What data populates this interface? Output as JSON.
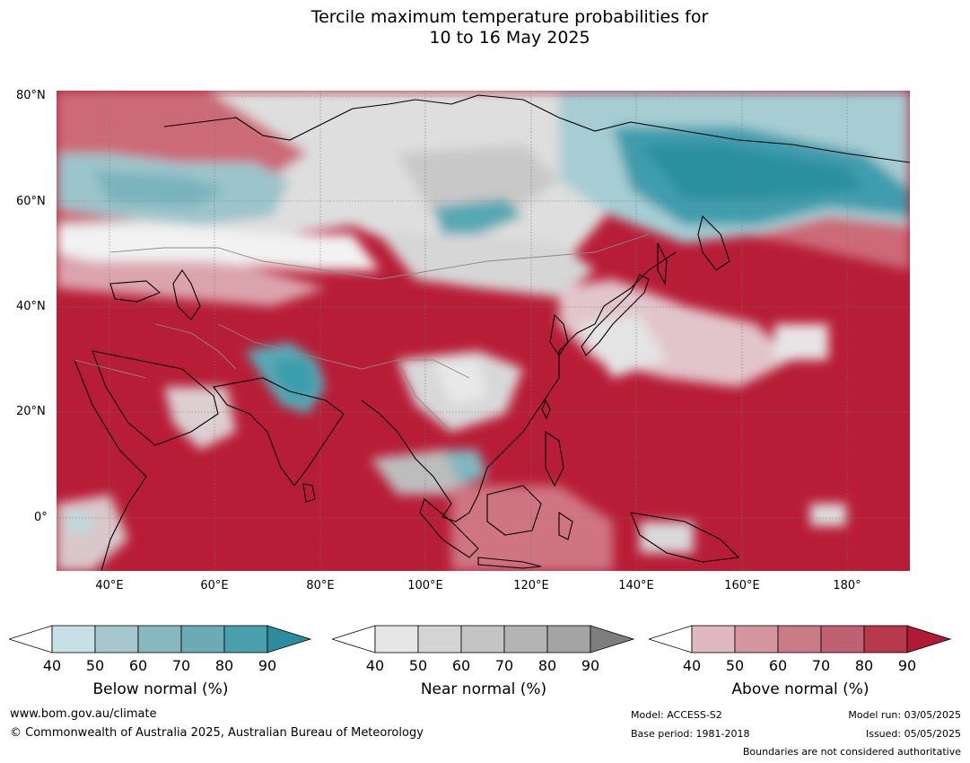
{
  "title": {
    "line1": "Tercile maximum temperature probabilities for",
    "line2": "10 to 16 May 2025"
  },
  "map": {
    "lat_labels": [
      "80°N",
      "60°N",
      "40°N",
      "20°N",
      "0°"
    ],
    "lon_labels": [
      "40°E",
      "60°E",
      "80°E",
      "100°E",
      "120°E",
      "140°E",
      "160°E",
      "180°"
    ],
    "extent": {
      "lon": [
        30,
        192
      ],
      "lat": [
        -10,
        81
      ]
    },
    "colors": {
      "above_dominant": "#b81d37",
      "below_dominant": "#3a9cab",
      "near_normal": "#dcdcdc"
    }
  },
  "colorbars": [
    {
      "title": "Below normal (%)",
      "ticks": [
        "40",
        "50",
        "60",
        "70",
        "80",
        "90"
      ],
      "colors": [
        "#ffffff",
        "#c7e0e6",
        "#a4c6cc",
        "#87b8bf",
        "#6babb5",
        "#4a9fac",
        "#2e8ca0"
      ]
    },
    {
      "title": "Near normal (%)",
      "ticks": [
        "40",
        "50",
        "60",
        "70",
        "80",
        "90"
      ],
      "colors": [
        "#ffffff",
        "#e6e6e6",
        "#d4d4d4",
        "#c4c4c4",
        "#b4b4b4",
        "#a4a4a4",
        "#7e7e7e"
      ]
    },
    {
      "title": "Above normal (%)",
      "ticks": [
        "40",
        "50",
        "60",
        "70",
        "80",
        "90"
      ],
      "colors": [
        "#ffffff",
        "#e0b8bf",
        "#d4959e",
        "#c97c86",
        "#c06070",
        "#b8394c",
        "#b01a37"
      ]
    }
  ],
  "footer": {
    "website": "www.bom.gov.au/climate",
    "copyright": "© Commonwealth of Australia 2025, Australian Bureau of Meteorology",
    "model": "Model: ACCESS-S2",
    "base_period": "Base period: 1981-2018",
    "model_run": "Model run: 03/05/2025",
    "issued": "Issued: 05/05/2025",
    "boundaries": "Boundaries are not considered authoritative"
  }
}
